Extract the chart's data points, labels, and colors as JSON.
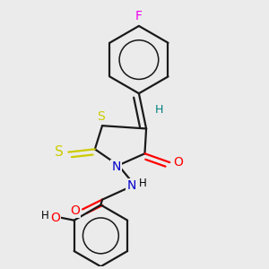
{
  "bg_color": "#ebebeb",
  "atom_colors": {
    "C": "#000000",
    "N": "#0000cc",
    "O": "#ff0000",
    "S": "#cccc00",
    "F": "#ee00ee",
    "H": "#000000",
    "teal": "#008080"
  },
  "bond_color": "#1a1a1a",
  "bond_width": 1.6,
  "dbo": 0.018,
  "figsize": [
    3.0,
    3.0
  ],
  "dpi": 100
}
